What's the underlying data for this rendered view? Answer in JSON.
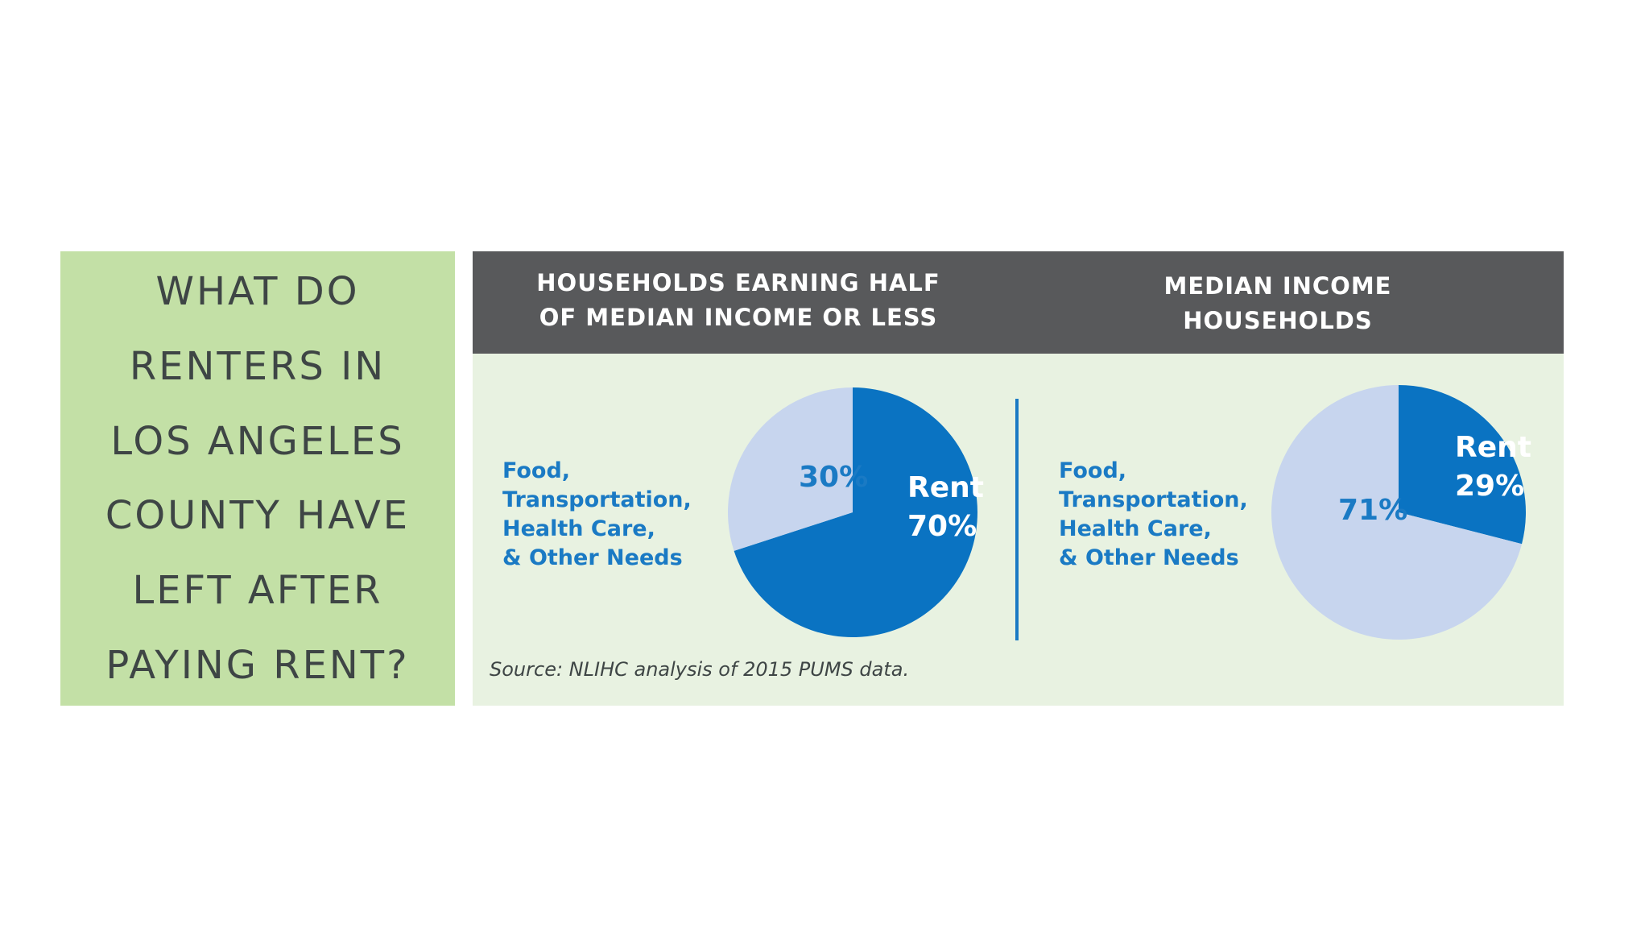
{
  "question": {
    "lines": [
      "WHAT DO",
      "RENTERS IN",
      "LOS ANGELES",
      "COUNTY HAVE",
      "LEFT AFTER",
      "PAYING RENT?"
    ]
  },
  "colors": {
    "rent": "#0a73c2",
    "other": "#c7d5ee",
    "label_on_light": "#1a7ac4",
    "label_on_dark": "#ffffff",
    "header_bg": "#58595b",
    "panel_bg": "#e8f2e1",
    "question_bg": "#c3e0a6"
  },
  "source": "Source: NLIHC analysis of 2015 PUMS data.",
  "chart_data": [
    {
      "type": "pie",
      "title": [
        "HOUSEHOLDS EARNING HALF",
        "OF MEDIAN INCOME OR LESS"
      ],
      "side_label": [
        "Food,",
        "Transportation,",
        "Health Care,",
        "& Other Needs"
      ],
      "slices": [
        {
          "name": "Rent",
          "value": 70,
          "label": "70%",
          "color": "#0a73c2"
        },
        {
          "name": "Food, Transportation, Health Care, & Other Needs",
          "value": 30,
          "label": "30%",
          "color": "#c7d5ee"
        }
      ]
    },
    {
      "type": "pie",
      "title": [
        "MEDIAN INCOME",
        "HOUSEHOLDS"
      ],
      "side_label": [
        "Food,",
        "Transportation,",
        "Health Care,",
        "& Other Needs"
      ],
      "slices": [
        {
          "name": "Rent",
          "value": 29,
          "label": "29%",
          "color": "#0a73c2"
        },
        {
          "name": "Food, Transportation, Health Care, & Other Needs",
          "value": 71,
          "label": "71%",
          "color": "#c7d5ee"
        }
      ]
    }
  ]
}
